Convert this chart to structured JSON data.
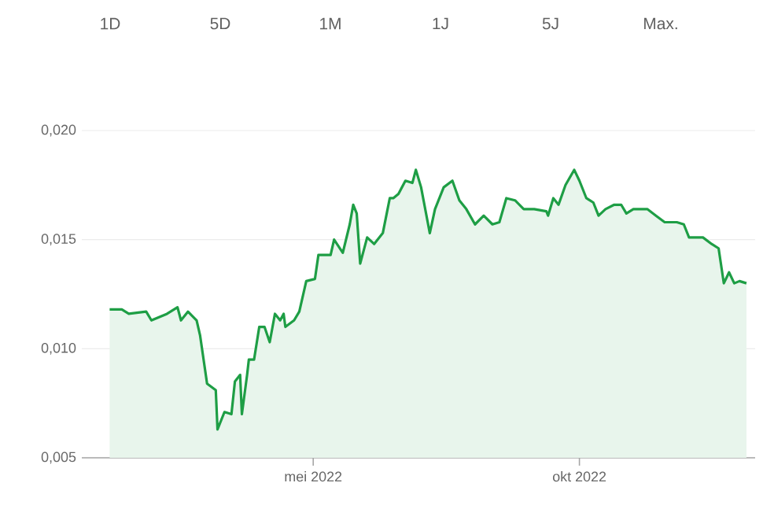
{
  "chart_data": {
    "type": "area",
    "color": "#1e9e45",
    "annotations": [
      "1D",
      "5D",
      "1M",
      "1J",
      "5J",
      "Max."
    ],
    "x": [
      "2022-01-04",
      "2022-01-11",
      "2022-01-15",
      "2022-01-25",
      "2022-01-28",
      "2022-02-06",
      "2022-02-12",
      "2022-02-14",
      "2022-02-18",
      "2022-02-23",
      "2022-02-25",
      "2022-03-01",
      "2022-03-06",
      "2022-03-07",
      "2022-03-11",
      "2022-03-15",
      "2022-03-17",
      "2022-03-20",
      "2022-03-21",
      "2022-03-24",
      "2022-03-25",
      "2022-03-28",
      "2022-03-31",
      "2022-04-03",
      "2022-04-06",
      "2022-04-09",
      "2022-04-12",
      "2022-04-14",
      "2022-04-15",
      "2022-04-20",
      "2022-04-23",
      "2022-04-27",
      "2022-05-02",
      "2022-05-04",
      "2022-05-11",
      "2022-05-13",
      "2022-05-18",
      "2022-05-22",
      "2022-05-24",
      "2022-05-26",
      "2022-05-28",
      "2022-06-01",
      "2022-06-05",
      "2022-06-10",
      "2022-06-14",
      "2022-06-16",
      "2022-06-19",
      "2022-06-23",
      "2022-06-27",
      "2022-06-29",
      "2022-07-02",
      "2022-07-07",
      "2022-07-10",
      "2022-07-15",
      "2022-07-20",
      "2022-07-24",
      "2022-07-28",
      "2022-08-02",
      "2022-08-07",
      "2022-08-12",
      "2022-08-16",
      "2022-08-20",
      "2022-08-25",
      "2022-08-30",
      "2022-09-05",
      "2022-09-12",
      "2022-09-13",
      "2022-09-16",
      "2022-09-19",
      "2022-09-23",
      "2022-09-28",
      "2022-10-01",
      "2022-10-05",
      "2022-10-09",
      "2022-10-12",
      "2022-10-16",
      "2022-10-21",
      "2022-10-25",
      "2022-10-28",
      "2022-11-01",
      "2022-11-09",
      "2022-11-14",
      "2022-11-19",
      "2022-11-26",
      "2022-11-30",
      "2022-12-03",
      "2022-12-11",
      "2022-12-16",
      "2022-12-20",
      "2022-12-23",
      "2022-12-26",
      "2022-12-29",
      "2023-01-01",
      "2023-01-05"
    ],
    "values": [
      0.0118,
      0.0118,
      0.0116,
      0.0117,
      0.0113,
      0.0116,
      0.0119,
      0.0113,
      0.0117,
      0.0113,
      0.0106,
      0.0084,
      0.0081,
      0.0063,
      0.0071,
      0.007,
      0.0085,
      0.0088,
      0.007,
      0.0088,
      0.0095,
      0.0095,
      0.011,
      0.011,
      0.0103,
      0.0116,
      0.0113,
      0.0116,
      0.011,
      0.0113,
      0.0117,
      0.0131,
      0.0132,
      0.0143,
      0.0143,
      0.015,
      0.0144,
      0.0157,
      0.0166,
      0.0162,
      0.0139,
      0.0151,
      0.0148,
      0.0153,
      0.0169,
      0.0169,
      0.0171,
      0.0177,
      0.0176,
      0.0182,
      0.0174,
      0.0153,
      0.0164,
      0.0174,
      0.0177,
      0.0168,
      0.0164,
      0.0157,
      0.0161,
      0.0157,
      0.0158,
      0.0169,
      0.0168,
      0.0164,
      0.0164,
      0.0163,
      0.0161,
      0.0169,
      0.0166,
      0.0175,
      0.0182,
      0.0177,
      0.0169,
      0.0167,
      0.0161,
      0.0164,
      0.0166,
      0.0166,
      0.0162,
      0.0164,
      0.0164,
      0.0161,
      0.0158,
      0.0158,
      0.0157,
      0.0151,
      0.0151,
      0.0148,
      0.0146,
      0.013,
      0.0135,
      0.013,
      0.0131,
      0.013
    ],
    "xlim": [
      "2021-12-19",
      "2023-01-10"
    ],
    "xticks": [
      {
        "value": "2022-05-01",
        "label": "mei 2022"
      },
      {
        "value": "2022-10-01",
        "label": "okt 2022"
      }
    ],
    "ylim": [
      0.005,
      0.02
    ],
    "yticks": [
      {
        "value": 0.005,
        "label": "0,005"
      },
      {
        "value": 0.01,
        "label": "0,010"
      },
      {
        "value": 0.015,
        "label": "0,015"
      },
      {
        "value": 0.02,
        "label": "0,020"
      }
    ],
    "grid": "y"
  }
}
